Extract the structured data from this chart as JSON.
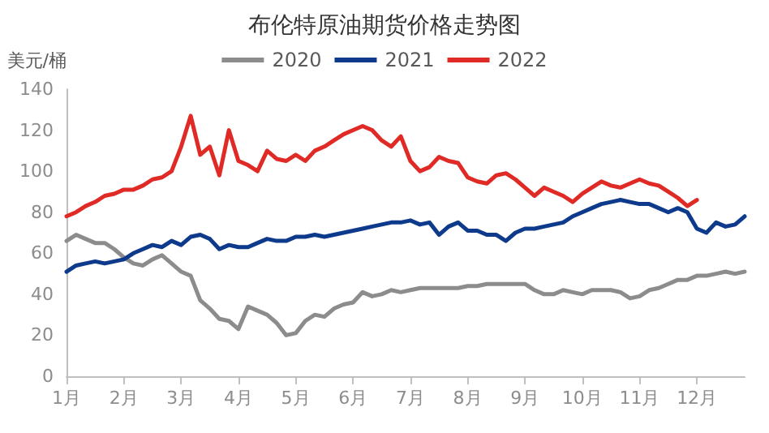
{
  "chart_data": {
    "type": "line",
    "title": "布伦特原油期货价格走势图",
    "ylabel": "美元/桶",
    "categories": [
      "1月",
      null,
      null,
      null,
      null,
      null,
      "2月",
      null,
      null,
      null,
      null,
      null,
      "3月",
      null,
      null,
      null,
      null,
      null,
      "4月",
      null,
      null,
      null,
      null,
      null,
      "5月",
      null,
      null,
      null,
      null,
      null,
      "6月",
      null,
      null,
      null,
      null,
      null,
      "7月",
      null,
      null,
      null,
      null,
      null,
      "8月",
      null,
      null,
      null,
      null,
      null,
      "9月",
      null,
      null,
      null,
      null,
      null,
      "10月",
      null,
      null,
      null,
      null,
      null,
      "11月",
      null,
      null,
      null,
      null,
      null,
      "12月",
      null,
      null,
      null,
      null,
      null
    ],
    "series": [
      {
        "name": "2020",
        "color": "#8c8c8c",
        "values": [
          66,
          69,
          67,
          65,
          65,
          62,
          58,
          55,
          54,
          57,
          59,
          55,
          51,
          49,
          37,
          33,
          28,
          27,
          23,
          34,
          32,
          30,
          26,
          20,
          21,
          27,
          30,
          29,
          33,
          35,
          36,
          41,
          39,
          40,
          42,
          41,
          42,
          43,
          43,
          43,
          43,
          43,
          44,
          44,
          45,
          45,
          45,
          45,
          45,
          42,
          40,
          40,
          42,
          41,
          40,
          42,
          42,
          42,
          41,
          38,
          39,
          42,
          43,
          45,
          47,
          47,
          49,
          49,
          50,
          51,
          50,
          51
        ]
      },
      {
        "name": "2021",
        "color": "#0e3a8c",
        "values": [
          51,
          54,
          55,
          56,
          55,
          56,
          57,
          60,
          62,
          64,
          63,
          66,
          64,
          68,
          69,
          67,
          62,
          64,
          63,
          63,
          65,
          67,
          66,
          66,
          68,
          68,
          69,
          68,
          69,
          70,
          71,
          72,
          73,
          74,
          75,
          75,
          76,
          74,
          75,
          69,
          73,
          75,
          71,
          71,
          69,
          69,
          66,
          70,
          72,
          72,
          73,
          74,
          75,
          78,
          80,
          82,
          84,
          85,
          86,
          85,
          84,
          84,
          82,
          80,
          82,
          80,
          72,
          70,
          75,
          73,
          74,
          78
        ]
      },
      {
        "name": "2022",
        "color": "#e02a26",
        "values": [
          78,
          80,
          83,
          85,
          88,
          89,
          91,
          91,
          93,
          96,
          97,
          100,
          112,
          127,
          108,
          112,
          98,
          120,
          105,
          103,
          100,
          110,
          106,
          105,
          108,
          105,
          110,
          112,
          115,
          118,
          120,
          122,
          120,
          115,
          112,
          117,
          105,
          100,
          102,
          107,
          105,
          104,
          97,
          95,
          94,
          98,
          99,
          96,
          92,
          88,
          92,
          90,
          88,
          85,
          89,
          92,
          95,
          93,
          92,
          94,
          96,
          94,
          93,
          90,
          87,
          83,
          86,
          null,
          null,
          null,
          null,
          null
        ]
      }
    ],
    "ylim": [
      0,
      140
    ],
    "yticks": [
      0,
      20,
      40,
      60,
      80,
      100,
      120,
      140
    ],
    "grid": false,
    "legend": "top",
    "marker": "none",
    "line_style": "solid"
  }
}
